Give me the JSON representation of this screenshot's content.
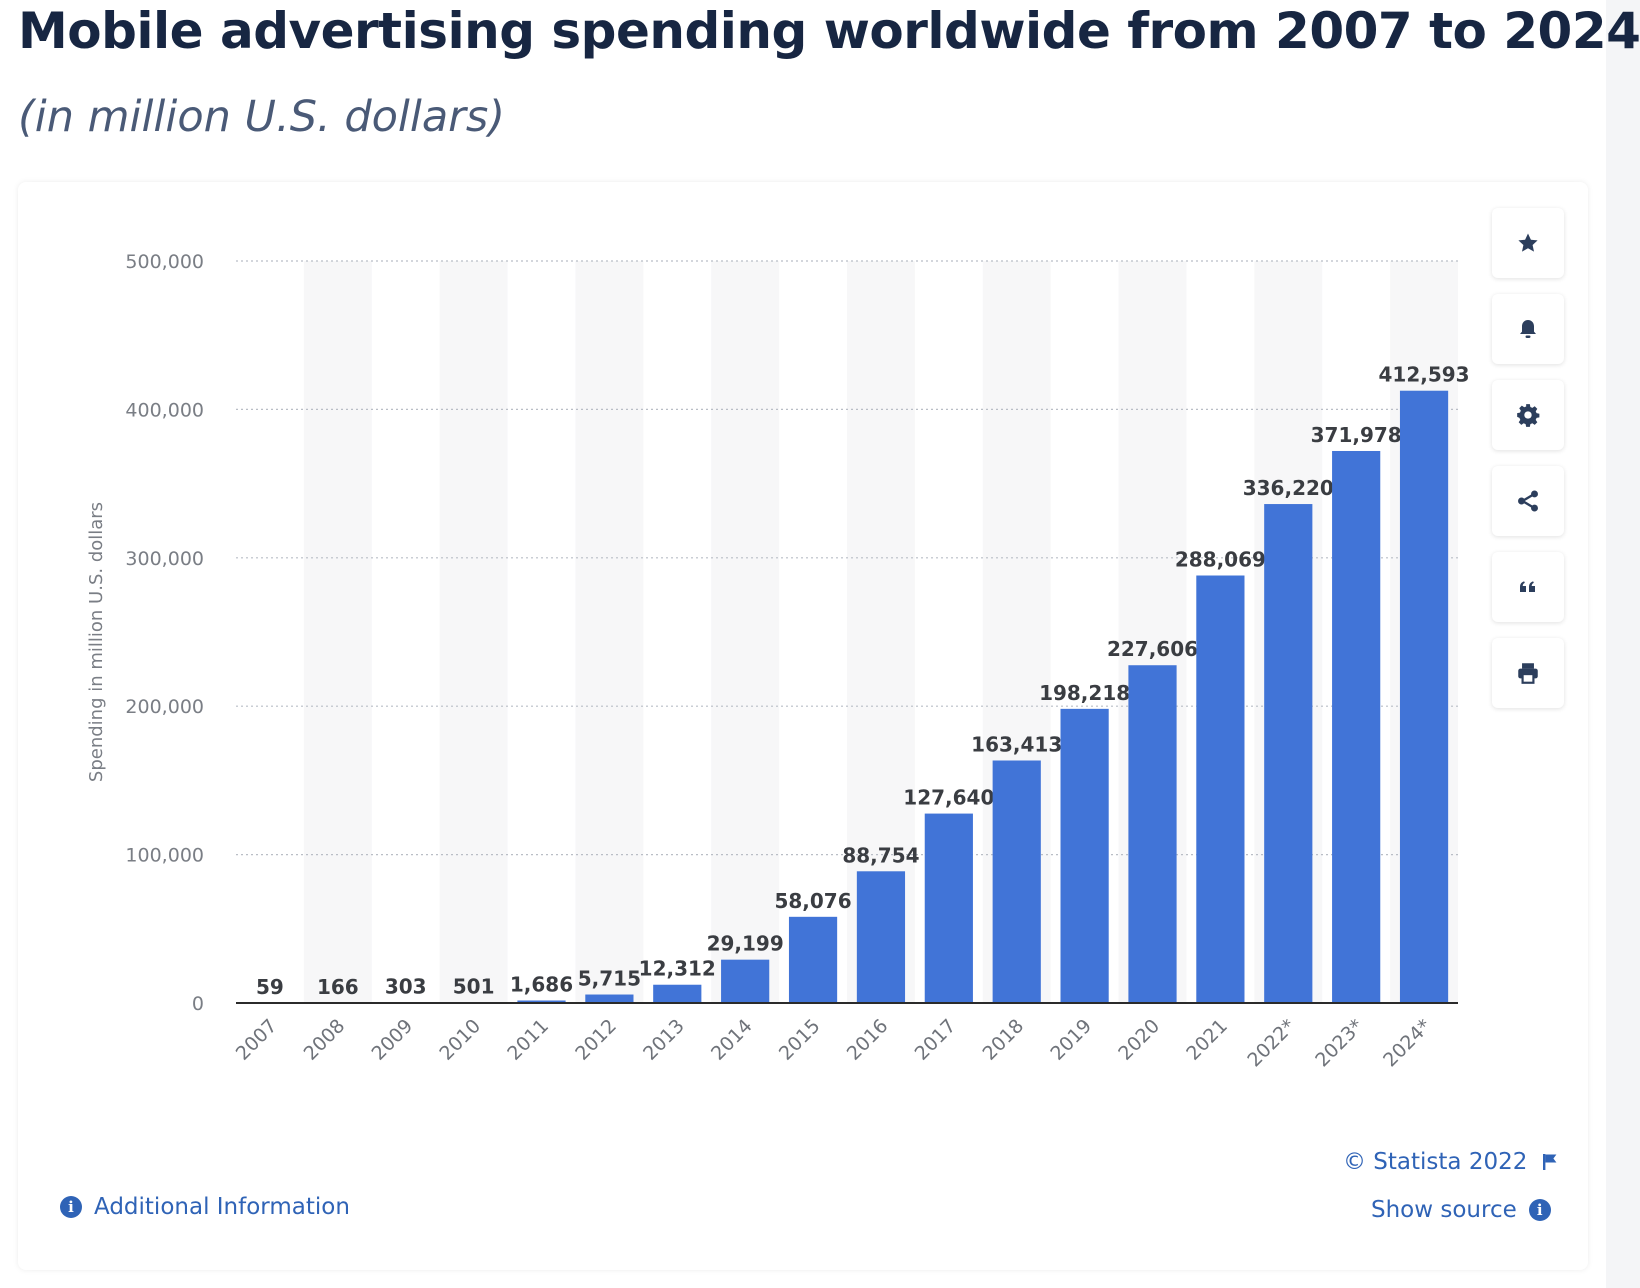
{
  "header": {
    "title": "Mobile advertising spending worldwide from 2007 to 2024",
    "subtitle": "(in million U.S. dollars)"
  },
  "toolbar": {
    "icons": [
      "star-icon",
      "bell-icon",
      "gear-icon",
      "share-icon",
      "quote-icon",
      "print-icon"
    ]
  },
  "footer": {
    "additional_info": "Additional Information",
    "copyright": "© Statista 2022",
    "show_source": "Show source"
  },
  "colors": {
    "bar": "#4174d7",
    "text_dark": "#172642",
    "link": "#2f63b6"
  },
  "chart_data": {
    "type": "bar",
    "title": "Mobile advertising spending worldwide from 2007 to 2024",
    "subtitle": "(in million U.S. dollars)",
    "xlabel": "",
    "ylabel": "Spending in million U.S. dollars",
    "categories": [
      "2007",
      "2008",
      "2009",
      "2010",
      "2011",
      "2012",
      "2013",
      "2014",
      "2015",
      "2016",
      "2017",
      "2018",
      "2019",
      "2020",
      "2021",
      "2022*",
      "2023*",
      "2024*"
    ],
    "values": [
      59,
      166,
      303,
      501,
      1686,
      5715,
      12312,
      29199,
      58076,
      88754,
      127640,
      163413,
      198218,
      227606,
      288069,
      336220,
      371978,
      412593
    ],
    "value_labels": [
      "59",
      "166",
      "303",
      "501",
      "1,686",
      "5,715",
      "12,312",
      "29,199",
      "58,076",
      "88,754",
      "127,640",
      "163,413",
      "198,218",
      "227,606",
      "288,069",
      "336,220",
      "371,978",
      "412,593"
    ],
    "ylim": [
      0,
      500000
    ],
    "yticks": [
      0,
      100000,
      200000,
      300000,
      400000,
      500000
    ],
    "ytick_labels": [
      "0",
      "100,000",
      "200,000",
      "300,000",
      "400,000",
      "500,000"
    ],
    "grid": true,
    "legend": "none"
  }
}
